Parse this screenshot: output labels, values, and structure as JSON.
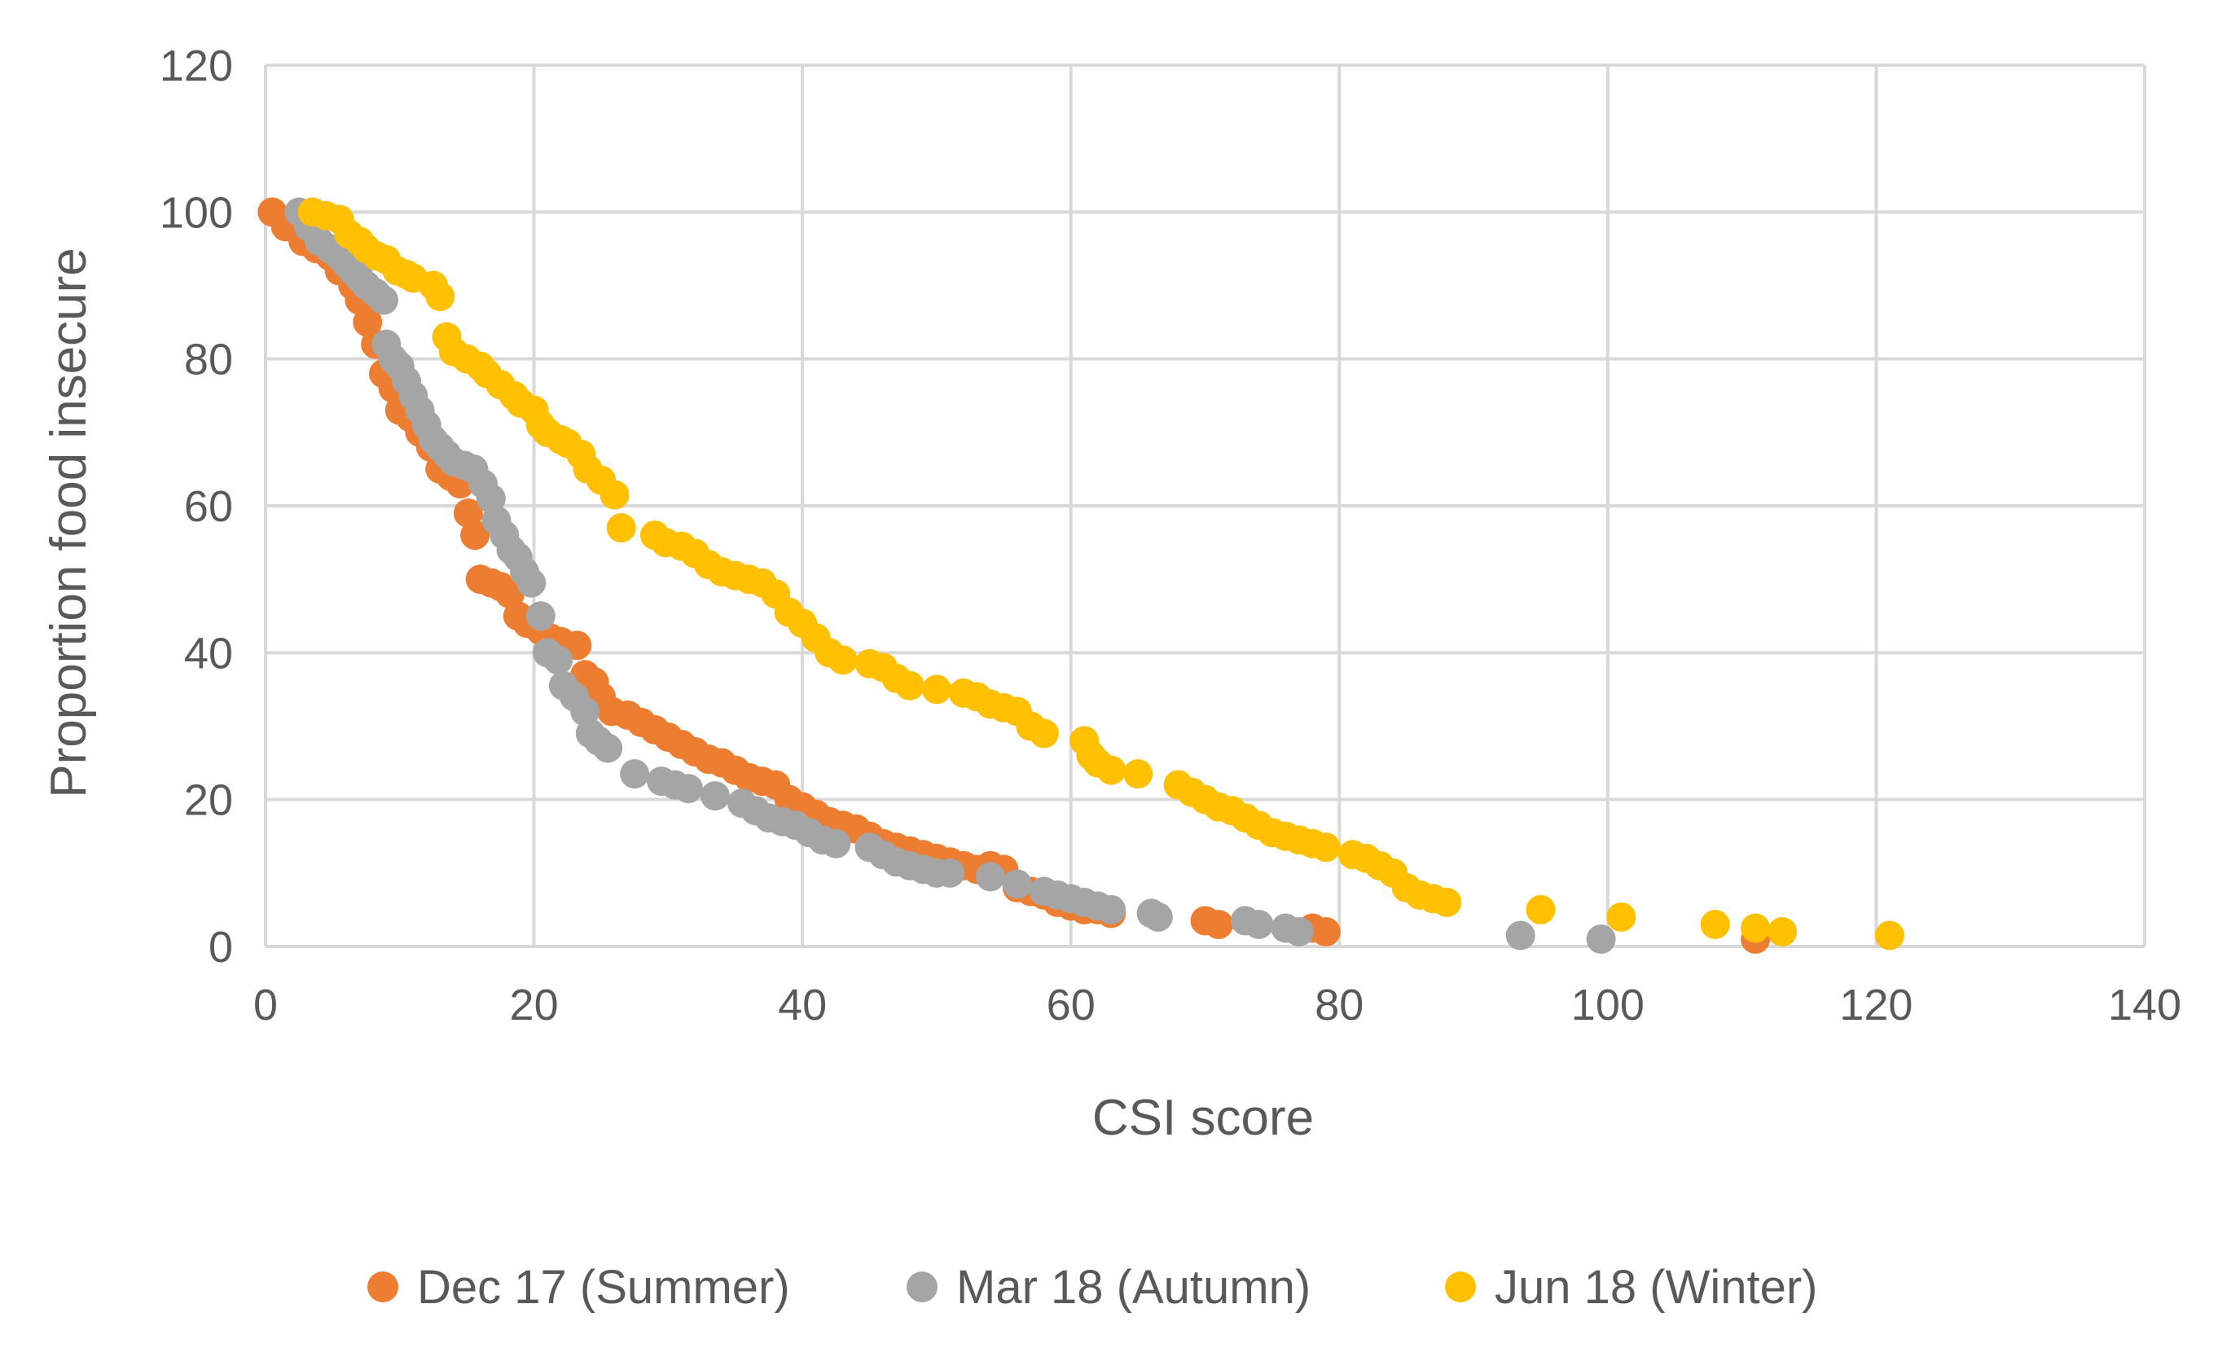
{
  "chart_data": {
    "type": "scatter",
    "title": "",
    "xlabel": "CSI score",
    "ylabel": "Proportion food insecure",
    "xlim": [
      0,
      140
    ],
    "ylim": [
      0,
      120
    ],
    "x_ticks": [
      "0",
      "20",
      "40",
      "60",
      "80",
      "100",
      "120",
      "140"
    ],
    "y_ticks": [
      "0",
      "20",
      "40",
      "60",
      "80",
      "100",
      "120"
    ],
    "grid": true,
    "legend_position": "bottom",
    "series": [
      {
        "name": "Dec 17 (Summer)",
        "color": "#ED7D31",
        "points": [
          [
            0.5,
            100
          ],
          [
            1.5,
            98
          ],
          [
            2.8,
            96
          ],
          [
            3.8,
            95
          ],
          [
            4.8,
            94
          ],
          [
            5.5,
            92
          ],
          [
            6.5,
            90
          ],
          [
            7,
            88
          ],
          [
            7.6,
            85
          ],
          [
            8.2,
            82
          ],
          [
            8.8,
            78
          ],
          [
            9.5,
            76
          ],
          [
            10,
            73
          ],
          [
            10.8,
            72
          ],
          [
            11.5,
            70
          ],
          [
            12.3,
            68
          ],
          [
            13,
            65
          ],
          [
            13.8,
            64
          ],
          [
            14.5,
            63
          ],
          [
            15.1,
            59
          ],
          [
            15.6,
            56
          ],
          [
            16,
            50
          ],
          [
            16.8,
            49.5
          ],
          [
            17.5,
            49
          ],
          [
            18.2,
            48
          ],
          [
            18.8,
            45
          ],
          [
            19.5,
            44
          ],
          [
            20.5,
            43
          ],
          [
            21.2,
            42
          ],
          [
            22,
            41.5
          ],
          [
            23.2,
            41
          ],
          [
            23.8,
            37
          ],
          [
            24.5,
            36
          ],
          [
            25,
            34
          ],
          [
            25.8,
            32
          ],
          [
            27,
            31.5
          ],
          [
            28,
            30.5
          ],
          [
            29,
            29.5
          ],
          [
            30,
            28.5
          ],
          [
            31,
            27.5
          ],
          [
            32,
            26.5
          ],
          [
            33,
            25.5
          ],
          [
            34,
            25
          ],
          [
            35,
            24
          ],
          [
            36,
            23
          ],
          [
            37,
            22.5
          ],
          [
            38,
            22
          ],
          [
            39,
            20
          ],
          [
            40,
            19
          ],
          [
            41,
            18
          ],
          [
            42,
            17
          ],
          [
            43,
            16.5
          ],
          [
            44,
            16
          ],
          [
            45,
            15
          ],
          [
            46,
            14
          ],
          [
            47,
            13.5
          ],
          [
            48,
            13
          ],
          [
            49,
            12.5
          ],
          [
            50,
            12
          ],
          [
            51,
            11.5
          ],
          [
            52,
            11
          ],
          [
            53,
            10.5
          ],
          [
            54,
            11
          ],
          [
            55,
            10.5
          ],
          [
            56,
            8
          ],
          [
            57,
            7.5
          ],
          [
            58,
            7
          ],
          [
            59,
            6
          ],
          [
            60,
            5.5
          ],
          [
            61,
            5
          ],
          [
            62,
            5
          ],
          [
            63,
            4.5
          ],
          [
            70,
            3.5
          ],
          [
            71,
            3
          ],
          [
            78,
            2.5
          ],
          [
            79,
            2
          ],
          [
            111,
            1
          ]
        ]
      },
      {
        "name": "Mar 18 (Autumn)",
        "color": "#A5A5A5",
        "points": [
          [
            2.5,
            100
          ],
          [
            3.2,
            98
          ],
          [
            4,
            96
          ],
          [
            4.8,
            95
          ],
          [
            5.5,
            94
          ],
          [
            6,
            93
          ],
          [
            6.5,
            92
          ],
          [
            7,
            91
          ],
          [
            7.5,
            90
          ],
          [
            8.2,
            89
          ],
          [
            8.8,
            88
          ],
          [
            9,
            82
          ],
          [
            9.5,
            80
          ],
          [
            10,
            79
          ],
          [
            10.5,
            77
          ],
          [
            11,
            75
          ],
          [
            11.5,
            73
          ],
          [
            12,
            71
          ],
          [
            12.5,
            69
          ],
          [
            13,
            68
          ],
          [
            13.5,
            67
          ],
          [
            14,
            66
          ],
          [
            14.8,
            65.5
          ],
          [
            15.5,
            65
          ],
          [
            16.2,
            63
          ],
          [
            16.8,
            61
          ],
          [
            17.2,
            58
          ],
          [
            17.8,
            56
          ],
          [
            18.3,
            54
          ],
          [
            18.8,
            53
          ],
          [
            19.3,
            51
          ],
          [
            19.8,
            49.5
          ],
          [
            20.5,
            45
          ],
          [
            21,
            40
          ],
          [
            21.8,
            39
          ],
          [
            22.2,
            35.5
          ],
          [
            23,
            34
          ],
          [
            23.8,
            32
          ],
          [
            24.2,
            29
          ],
          [
            24.8,
            28
          ],
          [
            25.5,
            27
          ],
          [
            27.5,
            23.5
          ],
          [
            29.5,
            22.5
          ],
          [
            30.5,
            22
          ],
          [
            31.5,
            21.5
          ],
          [
            33.5,
            20.5
          ],
          [
            35.5,
            19.5
          ],
          [
            36.5,
            18.5
          ],
          [
            37.5,
            17.5
          ],
          [
            38.5,
            17
          ],
          [
            39.5,
            16.5
          ],
          [
            40.5,
            15.5
          ],
          [
            41.5,
            14.5
          ],
          [
            42.5,
            14
          ],
          [
            45,
            13.5
          ],
          [
            46,
            12.5
          ],
          [
            47,
            11.5
          ],
          [
            48,
            11
          ],
          [
            49,
            10.5
          ],
          [
            50,
            10
          ],
          [
            51,
            10
          ],
          [
            54,
            9.5
          ],
          [
            56,
            8.5
          ],
          [
            58,
            7.5
          ],
          [
            59,
            7
          ],
          [
            60,
            6.5
          ],
          [
            61,
            6
          ],
          [
            62,
            5.5
          ],
          [
            63,
            5
          ],
          [
            66,
            4.5
          ],
          [
            66.5,
            4
          ],
          [
            73,
            3.5
          ],
          [
            74,
            3
          ],
          [
            76,
            2.5
          ],
          [
            77,
            2
          ],
          [
            93.5,
            1.5
          ],
          [
            99.5,
            1
          ]
        ]
      },
      {
        "name": "Jun 18 (Winter)",
        "color": "#FFC000",
        "points": [
          [
            3.5,
            100
          ],
          [
            4.5,
            99.5
          ],
          [
            5.5,
            99
          ],
          [
            6.2,
            97
          ],
          [
            7,
            96
          ],
          [
            7.5,
            95
          ],
          [
            8.3,
            94
          ],
          [
            9,
            93.5
          ],
          [
            9.8,
            92
          ],
          [
            10.5,
            91.5
          ],
          [
            11,
            91
          ],
          [
            12.5,
            90
          ],
          [
            13,
            88.5
          ],
          [
            13.5,
            83
          ],
          [
            14,
            81
          ],
          [
            15,
            80
          ],
          [
            16,
            79
          ],
          [
            16.5,
            78
          ],
          [
            17.5,
            76.5
          ],
          [
            18.5,
            75
          ],
          [
            19,
            74
          ],
          [
            20,
            73
          ],
          [
            20.5,
            71
          ],
          [
            21,
            70
          ],
          [
            22,
            69
          ],
          [
            22.5,
            68.5
          ],
          [
            23.5,
            67
          ],
          [
            24,
            65
          ],
          [
            25,
            63.5
          ],
          [
            26,
            61.5
          ],
          [
            26.5,
            57
          ],
          [
            29,
            56
          ],
          [
            29.8,
            55
          ],
          [
            31,
            54.5
          ],
          [
            32,
            53.5
          ],
          [
            33,
            52
          ],
          [
            34,
            51
          ],
          [
            35,
            50.5
          ],
          [
            36,
            50
          ],
          [
            37,
            49.5
          ],
          [
            38,
            48
          ],
          [
            39,
            45.5
          ],
          [
            40,
            44
          ],
          [
            41,
            42
          ],
          [
            42,
            40
          ],
          [
            43,
            39
          ],
          [
            45,
            38.5
          ],
          [
            46,
            38
          ],
          [
            47,
            36.5
          ],
          [
            48,
            35.5
          ],
          [
            50,
            35
          ],
          [
            52,
            34.5
          ],
          [
            53,
            34
          ],
          [
            54,
            33
          ],
          [
            55,
            32.5
          ],
          [
            56,
            32
          ],
          [
            57,
            30
          ],
          [
            58,
            29
          ],
          [
            61,
            28
          ],
          [
            61.5,
            26
          ],
          [
            62,
            25
          ],
          [
            63,
            24
          ],
          [
            65,
            23.5
          ],
          [
            68,
            22
          ],
          [
            69,
            21
          ],
          [
            70,
            20
          ],
          [
            71,
            19
          ],
          [
            72,
            18.5
          ],
          [
            73,
            17.5
          ],
          [
            74,
            16.5
          ],
          [
            75,
            15.5
          ],
          [
            76,
            15
          ],
          [
            77,
            14.5
          ],
          [
            78,
            14
          ],
          [
            79,
            13.5
          ],
          [
            81,
            12.5
          ],
          [
            82,
            12
          ],
          [
            83,
            11
          ],
          [
            84,
            10
          ],
          [
            85,
            8
          ],
          [
            86,
            7
          ],
          [
            87,
            6.5
          ],
          [
            88,
            6
          ],
          [
            95,
            5
          ],
          [
            101,
            4
          ],
          [
            108,
            3
          ],
          [
            111,
            2.5
          ],
          [
            113,
            2
          ],
          [
            121,
            1.5
          ]
        ]
      }
    ]
  }
}
